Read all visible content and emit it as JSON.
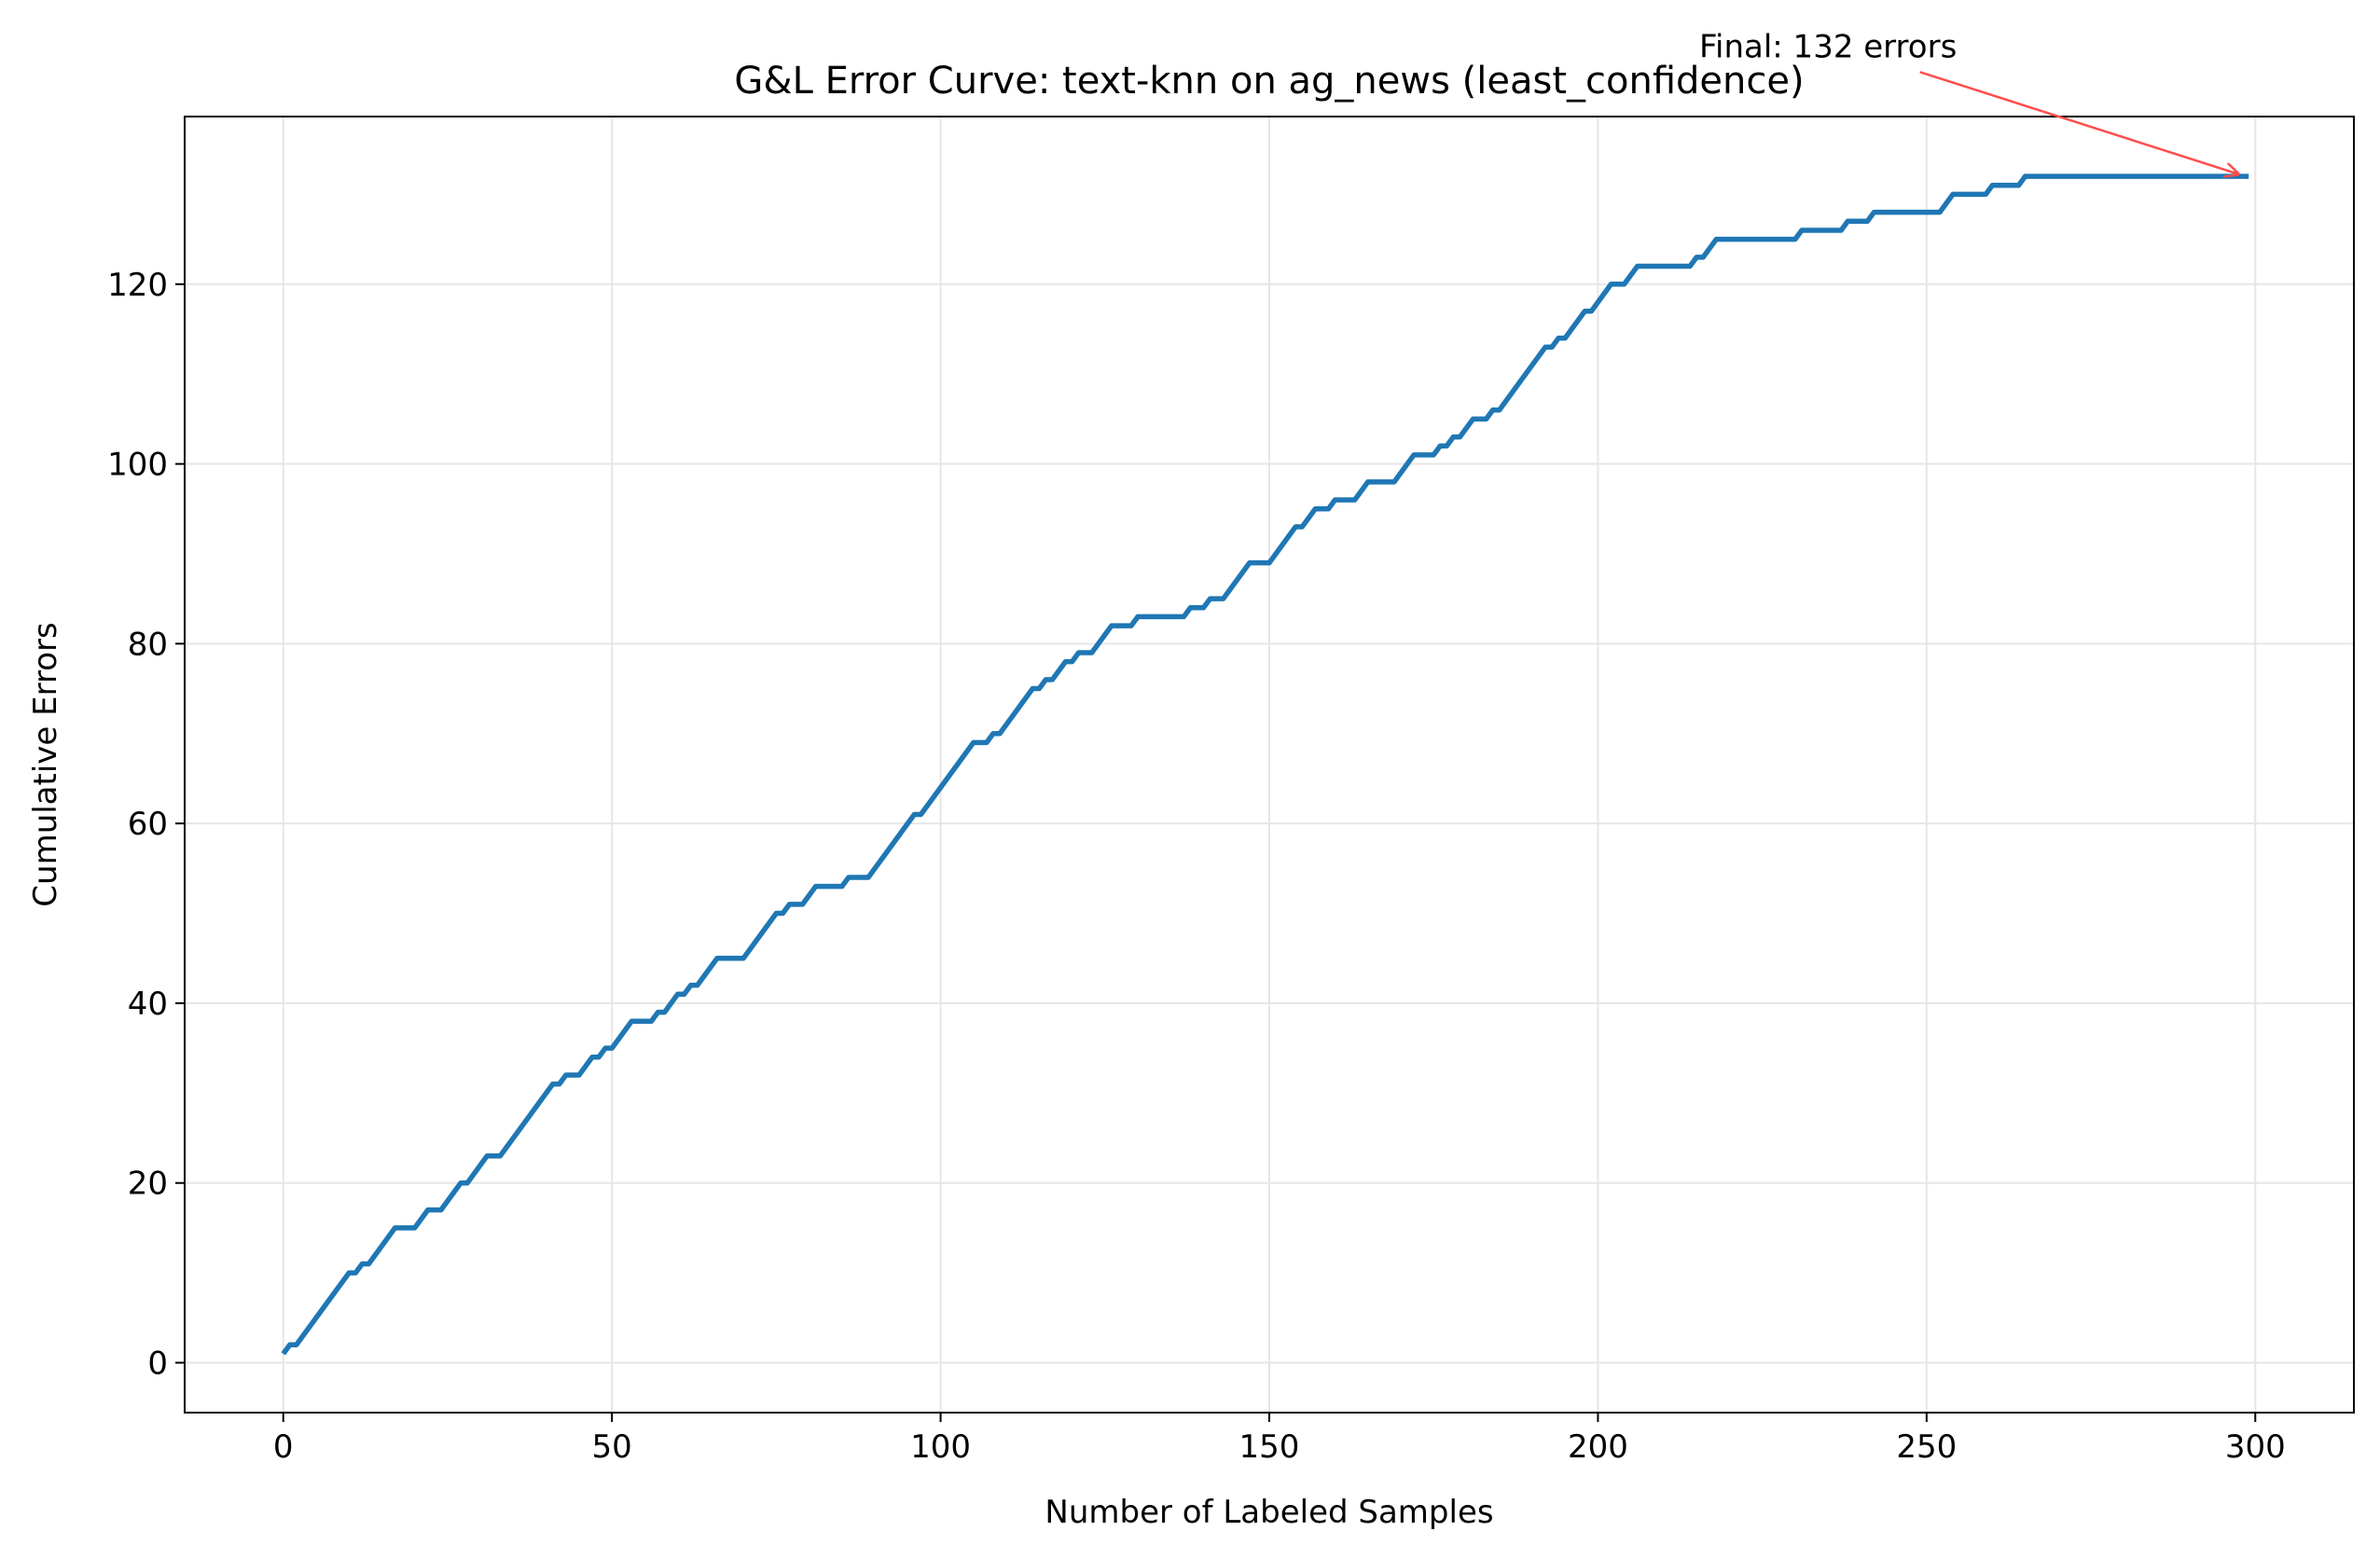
{
  "chart_data": {
    "type": "line",
    "title": "G&L Error Curve: text-knn on ag_news (least_confidence)",
    "xlabel": "Number of Labeled Samples",
    "ylabel": "Cumulative Errors",
    "xlim": [
      -15,
      315
    ],
    "ylim": [
      -5.55,
      138.65
    ],
    "xticks": [
      0,
      50,
      100,
      150,
      200,
      250,
      300
    ],
    "yticks": [
      0,
      20,
      40,
      60,
      80,
      100,
      120
    ],
    "xtick_labels": [
      "0",
      "50",
      "100",
      "150",
      "200",
      "250",
      "300"
    ],
    "ytick_labels": [
      "0",
      "20",
      "40",
      "60",
      "80",
      "100",
      "120"
    ],
    "grid": true,
    "colors": {
      "line": "#1f77b4",
      "annotation_arrow": "#ff4d4d",
      "grid": "#e6e6e6"
    },
    "annotation": {
      "text": "Final: 132 errors",
      "target": [
        299,
        132
      ],
      "text_anchor": [
        235,
        146.5
      ]
    },
    "series": [
      {
        "name": "Cumulative Errors",
        "points": [
          [
            0,
            1
          ],
          [
            1,
            2
          ],
          [
            2,
            2
          ],
          [
            10,
            10
          ],
          [
            11,
            10
          ],
          [
            12,
            11
          ],
          [
            13,
            11
          ],
          [
            17,
            15
          ],
          [
            20,
            15
          ],
          [
            22,
            17
          ],
          [
            24,
            17
          ],
          [
            27,
            20
          ],
          [
            28,
            20
          ],
          [
            31,
            23
          ],
          [
            33,
            23
          ],
          [
            41,
            31
          ],
          [
            42,
            31
          ],
          [
            43,
            32
          ],
          [
            45,
            32
          ],
          [
            47,
            34
          ],
          [
            48,
            34
          ],
          [
            49,
            35
          ],
          [
            50,
            35
          ],
          [
            53,
            38
          ],
          [
            56,
            38
          ],
          [
            57,
            39
          ],
          [
            58,
            39
          ],
          [
            60,
            41
          ],
          [
            61,
            41
          ],
          [
            62,
            42
          ],
          [
            63,
            42
          ],
          [
            66,
            45
          ],
          [
            70,
            45
          ],
          [
            75,
            50
          ],
          [
            76,
            50
          ],
          [
            77,
            51
          ],
          [
            79,
            51
          ],
          [
            81,
            53
          ],
          [
            85,
            53
          ],
          [
            86,
            54
          ],
          [
            89,
            54
          ],
          [
            96,
            61
          ],
          [
            97,
            61
          ],
          [
            105,
            69
          ],
          [
            107,
            69
          ],
          [
            108,
            70
          ],
          [
            109,
            70
          ],
          [
            114,
            75
          ],
          [
            115,
            75
          ],
          [
            116,
            76
          ],
          [
            117,
            76
          ],
          [
            119,
            78
          ],
          [
            120,
            78
          ],
          [
            121,
            79
          ],
          [
            123,
            79
          ],
          [
            126,
            82
          ],
          [
            129,
            82
          ],
          [
            130,
            83
          ],
          [
            137,
            83
          ],
          [
            138,
            84
          ],
          [
            140,
            84
          ],
          [
            141,
            85
          ],
          [
            143,
            85
          ],
          [
            147,
            89
          ],
          [
            150,
            89
          ],
          [
            154,
            93
          ],
          [
            155,
            93
          ],
          [
            157,
            95
          ],
          [
            159,
            95
          ],
          [
            160,
            96
          ],
          [
            163,
            96
          ],
          [
            165,
            98
          ],
          [
            169,
            98
          ],
          [
            172,
            101
          ],
          [
            175,
            101
          ],
          [
            176,
            102
          ],
          [
            177,
            102
          ],
          [
            178,
            103
          ],
          [
            179,
            103
          ],
          [
            181,
            105
          ],
          [
            183,
            105
          ],
          [
            184,
            106
          ],
          [
            185,
            106
          ],
          [
            192,
            113
          ],
          [
            193,
            113
          ],
          [
            194,
            114
          ],
          [
            195,
            114
          ],
          [
            198,
            117
          ],
          [
            199,
            117
          ],
          [
            202,
            120
          ],
          [
            204,
            120
          ],
          [
            206,
            122
          ],
          [
            214,
            122
          ],
          [
            215,
            123
          ],
          [
            216,
            123
          ],
          [
            218,
            125
          ],
          [
            230,
            125
          ],
          [
            231,
            126
          ],
          [
            237,
            126
          ],
          [
            238,
            127
          ],
          [
            241,
            127
          ],
          [
            242,
            128
          ],
          [
            252,
            128
          ],
          [
            254,
            130
          ],
          [
            259,
            130
          ],
          [
            260,
            131
          ],
          [
            264,
            131
          ],
          [
            265,
            132
          ],
          [
            299,
            132
          ]
        ]
      }
    ]
  }
}
